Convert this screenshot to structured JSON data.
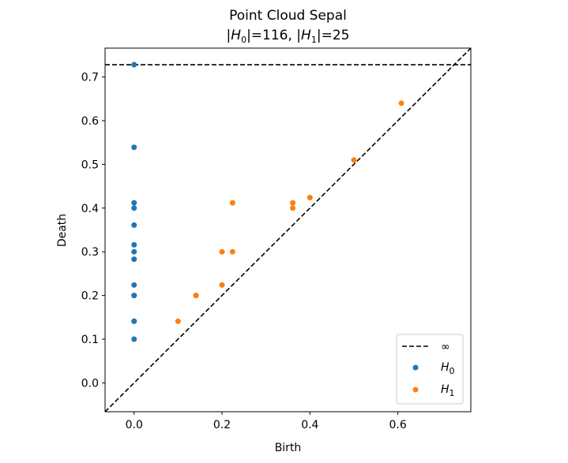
{
  "chart_data": {
    "type": "scatter",
    "title_line1": "Point Cloud Sepal",
    "title_line2": {
      "h0_symbol": "H",
      "h0_sub": "0",
      "h0_count": "116",
      "h1_symbol": "H",
      "h1_sub": "1",
      "h1_count": "25"
    },
    "xlabel": "Birth",
    "ylabel": "Death",
    "xlim": [
      -0.066,
      0.766
    ],
    "ylim": [
      -0.066,
      0.766
    ],
    "x_ticks": [
      0.0,
      0.2,
      0.4,
      0.6
    ],
    "x_tick_labels": [
      "0.0",
      "0.2",
      "0.4",
      "0.6"
    ],
    "y_ticks": [
      0.0,
      0.1,
      0.2,
      0.3,
      0.4,
      0.5,
      0.6,
      0.7
    ],
    "y_tick_labels": [
      "0.0",
      "0.1",
      "0.2",
      "0.3",
      "0.4",
      "0.5",
      "0.6",
      "0.7"
    ],
    "infinity_level": 0.728,
    "legend": {
      "placement": "lower-right",
      "entries": [
        {
          "label": "∞",
          "kind": "dashed-line"
        },
        {
          "symbol": "H",
          "sub": "0",
          "kind": "marker",
          "color": "#1f77b4"
        },
        {
          "symbol": "H",
          "sub": "1",
          "kind": "marker",
          "color": "#ff7f0e"
        }
      ]
    },
    "series": [
      {
        "color": "#1f77b4",
        "x": [
          0,
          0,
          0,
          0,
          0,
          0,
          0,
          0,
          0,
          0,
          0,
          0,
          0,
          0
        ],
        "y": [
          0.728,
          0.539,
          0.412,
          0.4,
          0.361,
          0.316,
          0.3,
          0.283,
          0.224,
          0.2,
          0.2,
          0.141,
          0.141,
          0.1
        ]
      },
      {
        "color": "#ff7f0e",
        "x": [
          0.608,
          0.5,
          0.4,
          0.361,
          0.361,
          0.224,
          0.224,
          0.2,
          0.2,
          0.141,
          0.141,
          0.1
        ],
        "y": [
          0.64,
          0.51,
          0.424,
          0.412,
          0.4,
          0.412,
          0.3,
          0.3,
          0.224,
          0.2,
          0.2,
          0.141
        ]
      }
    ]
  }
}
